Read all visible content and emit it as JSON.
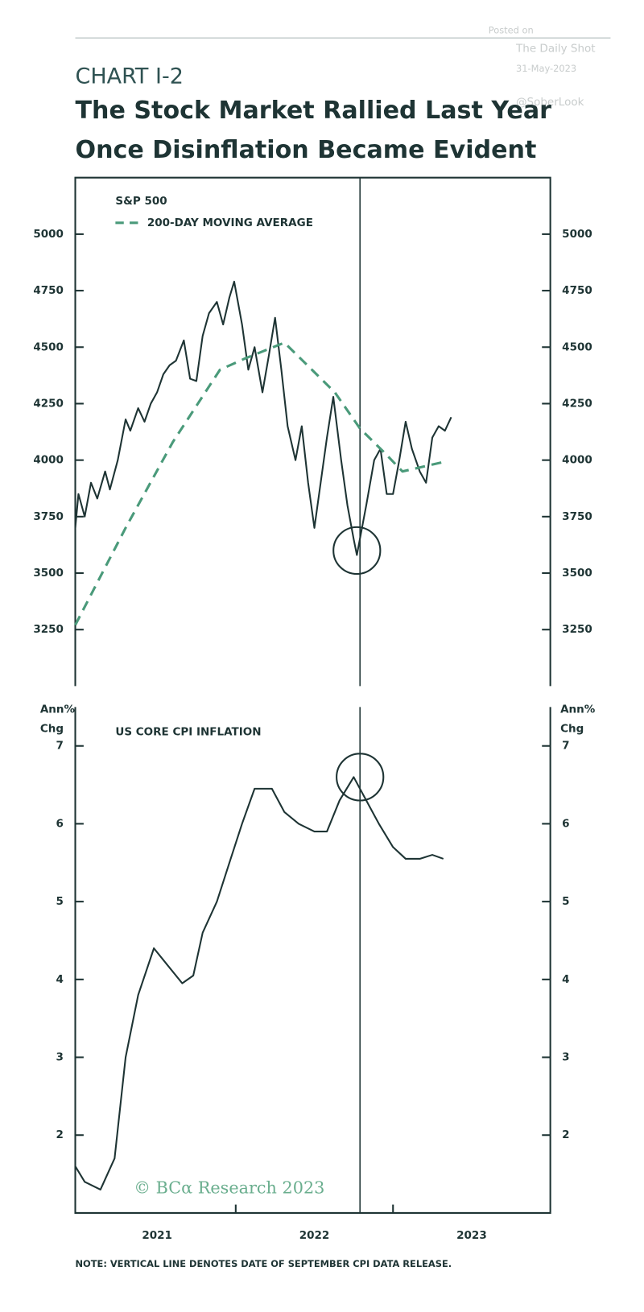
{
  "header": {
    "label": "CHART I-2",
    "title": [
      "The Stock Market Rallied Last Year",
      "Once Disinflation Became Evident"
    ]
  },
  "watermark": [
    "Posted on",
    "The Daily Shot",
    "31-May-2023",
    "@SoberLook"
  ],
  "credit": "© BCα Research 2023",
  "note": "NOTE: VERTICAL LINE DENOTES DATE OF SEPTEMBER CPI DATA RELEASE.",
  "chart_data": [
    {
      "type": "line",
      "xlim": [
        2020.98,
        2024.0
      ],
      "ylim": [
        3000,
        5250
      ],
      "yticks": [
        3250,
        3500,
        3750,
        4000,
        4250,
        4500,
        4750,
        5000
      ],
      "vline": 2022.79,
      "highlight": {
        "x": 2022.77,
        "y": 3600
      },
      "series": [
        {
          "name": "S&P 500",
          "color": "#1e3434",
          "style": "solid",
          "x": [
            2020.98,
            2021.0,
            2021.04,
            2021.08,
            2021.12,
            2021.17,
            2021.2,
            2021.25,
            2021.3,
            2021.33,
            2021.38,
            2021.42,
            2021.46,
            2021.5,
            2021.54,
            2021.58,
            2021.62,
            2021.67,
            2021.71,
            2021.75,
            2021.79,
            2021.83,
            2021.88,
            2021.92,
            2021.96,
            2021.99,
            2022.04,
            2022.08,
            2022.12,
            2022.17,
            2022.21,
            2022.25,
            2022.29,
            2022.33,
            2022.38,
            2022.42,
            2022.46,
            2022.5,
            2022.54,
            2022.58,
            2022.62,
            2022.67,
            2022.71,
            2022.75,
            2022.77,
            2022.83,
            2022.88,
            2022.92,
            2022.96,
            2023.0,
            2023.04,
            2023.08,
            2023.12,
            2023.17,
            2023.21,
            2023.25,
            2023.29,
            2023.33,
            2023.37
          ],
          "values": [
            3700,
            3850,
            3750,
            3900,
            3830,
            3950,
            3870,
            4000,
            4180,
            4130,
            4230,
            4170,
            4250,
            4300,
            4380,
            4420,
            4440,
            4530,
            4360,
            4350,
            4550,
            4650,
            4700,
            4600,
            4720,
            4790,
            4600,
            4400,
            4500,
            4300,
            4460,
            4630,
            4400,
            4150,
            4000,
            4150,
            3900,
            3700,
            3900,
            4100,
            4280,
            4000,
            3800,
            3650,
            3580,
            3800,
            4000,
            4050,
            3850,
            3850,
            4000,
            4170,
            4050,
            3950,
            3900,
            4100,
            4150,
            4130,
            4190
          ]
        },
        {
          "name": "200-DAY MOVING AVERAGE",
          "color": "#4a9a7a",
          "style": "dashed",
          "x": [
            2020.98,
            2021.3,
            2021.6,
            2021.9,
            2022.06,
            2022.31,
            2022.63,
            2022.79,
            2022.95,
            2023.06,
            2023.31
          ],
          "values": [
            3270,
            3700,
            4080,
            4400,
            4450,
            4520,
            4300,
            4140,
            4030,
            3950,
            3990
          ]
        }
      ]
    },
    {
      "type": "line",
      "label": "US CORE CPI INFLATION",
      "ylabel": [
        "Ann%",
        "Chg"
      ],
      "xlim": [
        2020.98,
        2024.0
      ],
      "ylim": [
        1.0,
        7.5
      ],
      "yticks": [
        2,
        3,
        4,
        5,
        6,
        7
      ],
      "xticks": [
        {
          "value": 2021.5,
          "label": "2021"
        },
        {
          "value": 2022.5,
          "label": "2022"
        },
        {
          "value": 2023.5,
          "label": "2023"
        }
      ],
      "xminor": [
        2022,
        2023
      ],
      "vline": 2022.79,
      "highlight": {
        "x": 2022.79,
        "y": 6.6
      },
      "series": [
        {
          "name": "US CORE CPI INFLATION",
          "color": "#1e3434",
          "style": "solid",
          "x": [
            2020.98,
            2021.04,
            2021.14,
            2021.23,
            2021.3,
            2021.38,
            2021.48,
            2021.56,
            2021.66,
            2021.73,
            2021.79,
            2021.88,
            2021.96,
            2022.04,
            2022.12,
            2022.23,
            2022.31,
            2022.4,
            2022.5,
            2022.58,
            2022.66,
            2022.75,
            2022.83,
            2022.91,
            2023.0,
            2023.08,
            2023.17,
            2023.25,
            2023.32
          ],
          "values": [
            1.6,
            1.4,
            1.3,
            1.7,
            3.0,
            3.8,
            4.4,
            4.2,
            3.95,
            4.05,
            4.6,
            5.0,
            5.5,
            6.0,
            6.45,
            6.45,
            6.15,
            6.0,
            5.9,
            5.9,
            6.3,
            6.6,
            6.3,
            6.0,
            5.7,
            5.55,
            5.55,
            5.6,
            5.55
          ]
        }
      ]
    }
  ]
}
